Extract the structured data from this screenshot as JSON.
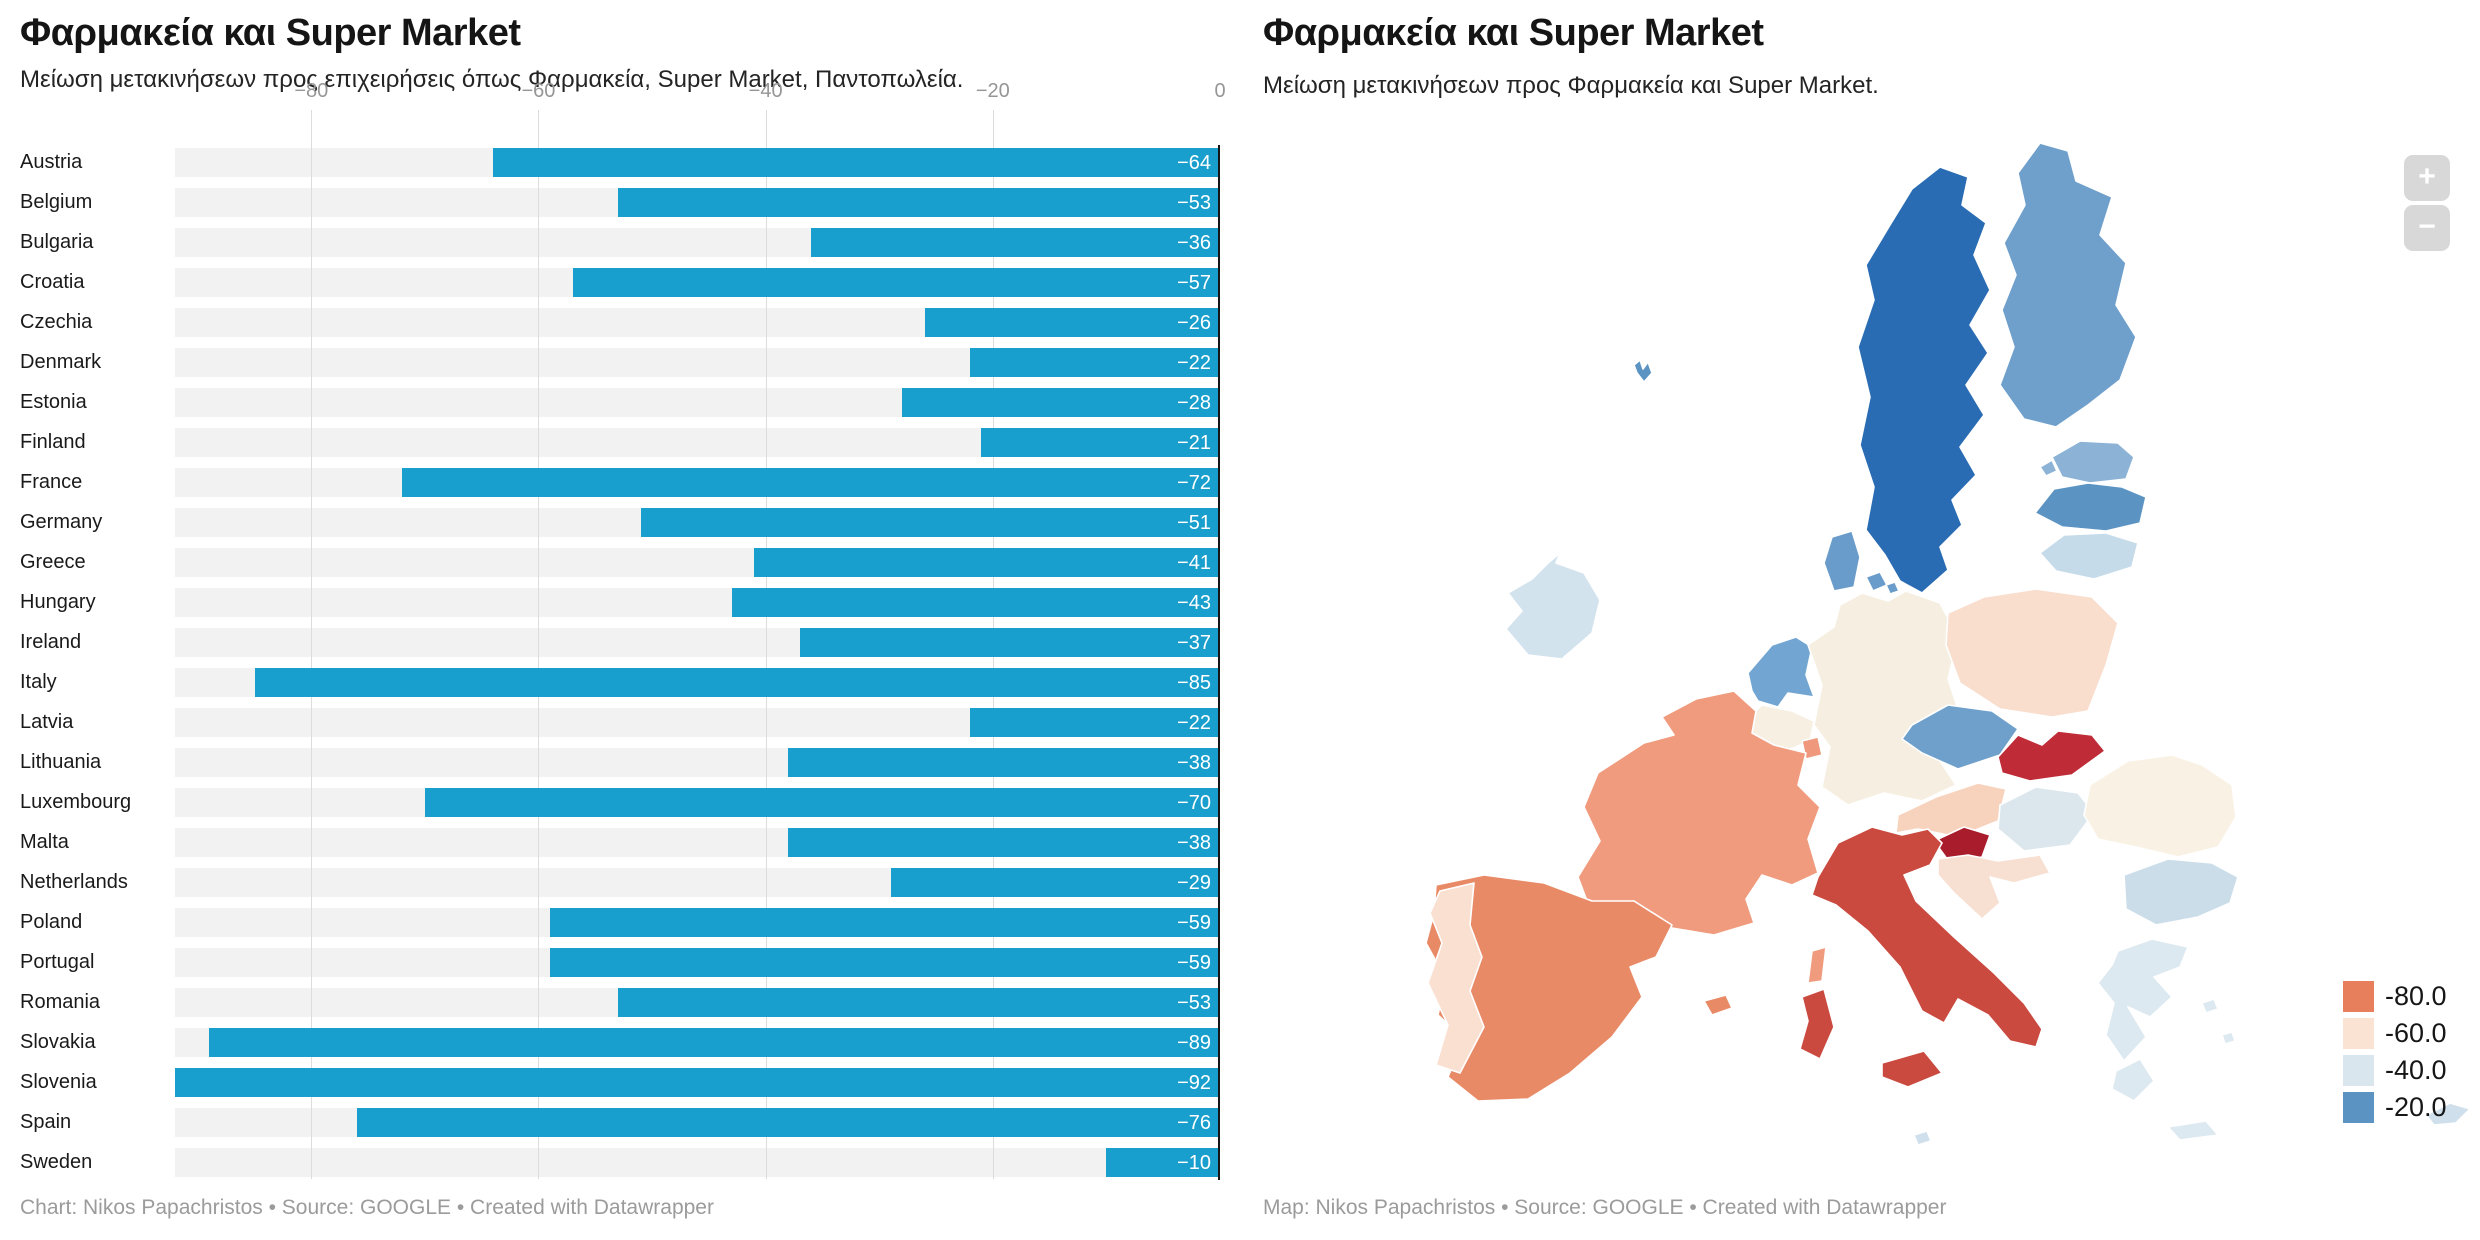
{
  "chart_data": [
    {
      "type": "bar",
      "title": "Φαρμακεία και Super Market",
      "subtitle": "Μείωση μετακινήσεων προς επιχειρήσεις όπως Φαρμακεία, Super Market, Παντοπωλεία.",
      "footer": "Chart: Nikos Papachristos • Source: GOOGLE • Created with Datawrapper",
      "categories": [
        "Austria",
        "Belgium",
        "Bulgaria",
        "Croatia",
        "Czechia",
        "Denmark",
        "Estonia",
        "Finland",
        "France",
        "Germany",
        "Greece",
        "Hungary",
        "Ireland",
        "Italy",
        "Latvia",
        "Lithuania",
        "Luxembourg",
        "Malta",
        "Netherlands",
        "Poland",
        "Portugal",
        "Romania",
        "Slovakia",
        "Slovenia",
        "Spain",
        "Sweden"
      ],
      "values": [
        -64,
        -53,
        -36,
        -57,
        -26,
        -22,
        -28,
        -21,
        -72,
        -51,
        -41,
        -43,
        -37,
        -85,
        -22,
        -38,
        -70,
        -38,
        -29,
        -59,
        -59,
        -53,
        -89,
        -92,
        -76,
        -10
      ],
      "xlim": [
        -92,
        0
      ],
      "x_ticks": [
        -80,
        -60,
        -40,
        -20,
        0
      ],
      "bar_color": "#189fcd",
      "track_color": "#f2f2f2",
      "grid": true
    },
    {
      "type": "choropleth",
      "title": "Φαρμακεία και Super Market",
      "subtitle": "Μείωση μετακινήσεων προς Φαρμακεία και Super Market.",
      "footer": "Map: Nikos Papachristos • Source: GOOGLE • Created with Datawrapper",
      "legend_position": "bottom-right",
      "legend": [
        {
          "label": "-80.0",
          "color": "#e87f5c"
        },
        {
          "label": "-60.0",
          "color": "#fbe3d3"
        },
        {
          "label": "-40.0",
          "color": "#d9e6ee"
        },
        {
          "label": "-20.0",
          "color": "#5b93c2"
        }
      ],
      "zoom_in_label": "+",
      "zoom_out_label": "−",
      "countries": [
        {
          "id": "sweden",
          "name": "Sweden",
          "value": -10,
          "color": "#2a6cb3"
        },
        {
          "id": "finland",
          "name": "Finland",
          "value": -21,
          "color": "#6f9fcb"
        },
        {
          "id": "denmark",
          "name": "Denmark",
          "value": -22,
          "color": "#699cca"
        },
        {
          "id": "latvia",
          "name": "Latvia",
          "value": -22,
          "color": "#5b93c2"
        },
        {
          "id": "czechia",
          "name": "Czechia",
          "value": -26,
          "color": "#6fa0cc"
        },
        {
          "id": "estonia",
          "name": "Estonia",
          "value": -28,
          "color": "#8cb3d6"
        },
        {
          "id": "netherlands",
          "name": "Netherlands",
          "value": -29,
          "color": "#72a5d1"
        },
        {
          "id": "bulgaria",
          "name": "Bulgaria",
          "value": -36,
          "color": "#cadde9"
        },
        {
          "id": "ireland",
          "name": "Ireland",
          "value": -37,
          "color": "#d3e3ee"
        },
        {
          "id": "lithuania",
          "name": "Lithuania",
          "value": -38,
          "color": "#c6dbe9"
        },
        {
          "id": "malta",
          "name": "Malta",
          "value": -38,
          "color": "#cfe0ec"
        },
        {
          "id": "greece",
          "name": "Greece",
          "value": -41,
          "color": "#dde9f0"
        },
        {
          "id": "hungary",
          "name": "Hungary",
          "value": -43,
          "color": "#dbe7ed"
        },
        {
          "id": "germany",
          "name": "Germany",
          "value": -51,
          "color": "#f6efe1"
        },
        {
          "id": "belgium",
          "name": "Belgium",
          "value": -53,
          "color": "#f8efe3"
        },
        {
          "id": "romania",
          "name": "Romania",
          "value": -53,
          "color": "#f9f1e4"
        },
        {
          "id": "croatia",
          "name": "Croatia",
          "value": -57,
          "color": "#f7e0d1"
        },
        {
          "id": "poland",
          "name": "Poland",
          "value": -59,
          "color": "#f9ddcd"
        },
        {
          "id": "portugal",
          "name": "Portugal",
          "value": -59,
          "color": "#fae0d1"
        },
        {
          "id": "austria",
          "name": "Austria",
          "value": -64,
          "color": "#f7d2bd"
        },
        {
          "id": "luxembourg",
          "name": "Luxembourg",
          "value": -70,
          "color": "#f0987b"
        },
        {
          "id": "france",
          "name": "France",
          "value": -72,
          "color": "#f09b7d"
        },
        {
          "id": "spain",
          "name": "Spain",
          "value": -76,
          "color": "#e98a66"
        },
        {
          "id": "italy",
          "name": "Italy",
          "value": -85,
          "color": "#ca4a40"
        },
        {
          "id": "slovakia",
          "name": "Slovakia",
          "value": -89,
          "color": "#bf2b36"
        },
        {
          "id": "slovenia",
          "name": "Slovenia",
          "value": -92,
          "color": "#a91c2c"
        },
        {
          "id": "cyprus",
          "name": "Cyprus",
          "color": "#cfe0ec"
        },
        {
          "id": "islet",
          "name": "Islet",
          "color": "#5b93c2"
        }
      ]
    }
  ]
}
